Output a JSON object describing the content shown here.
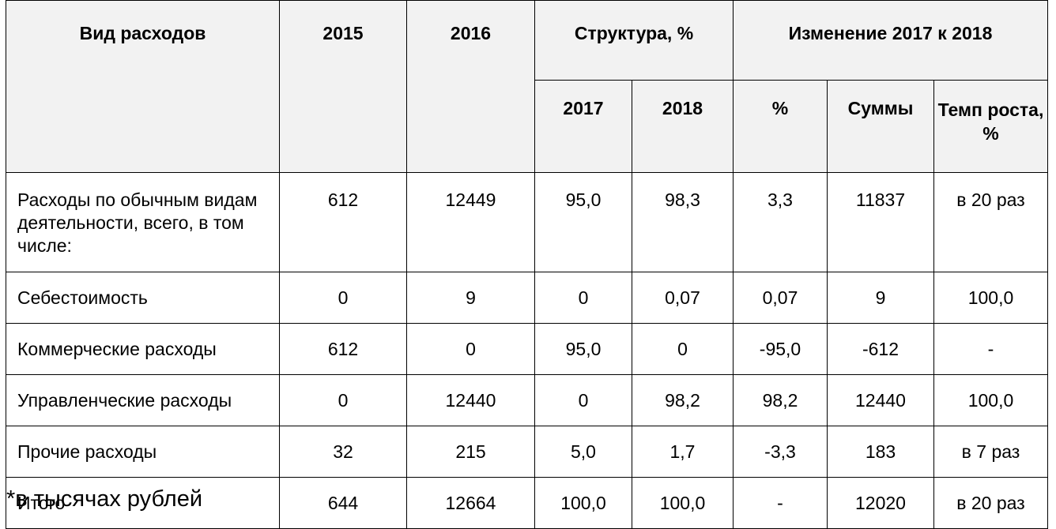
{
  "header": {
    "col_type": "Вид расходов",
    "col_2015": "2015",
    "col_2016": "2016",
    "structure": "Структура, %",
    "change": "Изменение 2017 к 2018",
    "sub_2017": "2017",
    "sub_2018": "2018",
    "sub_pct": "%",
    "sub_sum": "Суммы",
    "sub_rate": "Темп роста, %"
  },
  "rows": [
    {
      "name": "Расходы по обычным видам деятельности, всего, в том числе:",
      "y2015": "612",
      "y2016": "12449",
      "s2017": "95,0",
      "s2018": "98,3",
      "pct": "3,3",
      "sum": "11837",
      "rate": "в 20 раз"
    },
    {
      "name": "Себестоимость",
      "y2015": "0",
      "y2016": "9",
      "s2017": "0",
      "s2018": "0,07",
      "pct": "0,07",
      "sum": "9",
      "rate": "100,0"
    },
    {
      "name": "Коммерческие расходы",
      "y2015": "612",
      "y2016": "0",
      "s2017": "95,0",
      "s2018": "0",
      "pct": "-95,0",
      "sum": "-612",
      "rate": "-"
    },
    {
      "name": "Управленческие расходы",
      "y2015": "0",
      "y2016": "12440",
      "s2017": "0",
      "s2018": "98,2",
      "pct": "98,2",
      "sum": "12440",
      "rate": "100,0"
    },
    {
      "name": "Прочие расходы",
      "y2015": "32",
      "y2016": "215",
      "s2017": "5,0",
      "s2018": "1,7",
      "pct": "-3,3",
      "sum": "183",
      "rate": "в 7 раз"
    },
    {
      "name": "Итого",
      "y2015": "644",
      "y2016": "12664",
      "s2017": "100,0",
      "s2018": "100,0",
      "pct": "-",
      "sum": "12020",
      "rate": "в 20 раз"
    }
  ],
  "note": "*в тысячах рублей"
}
